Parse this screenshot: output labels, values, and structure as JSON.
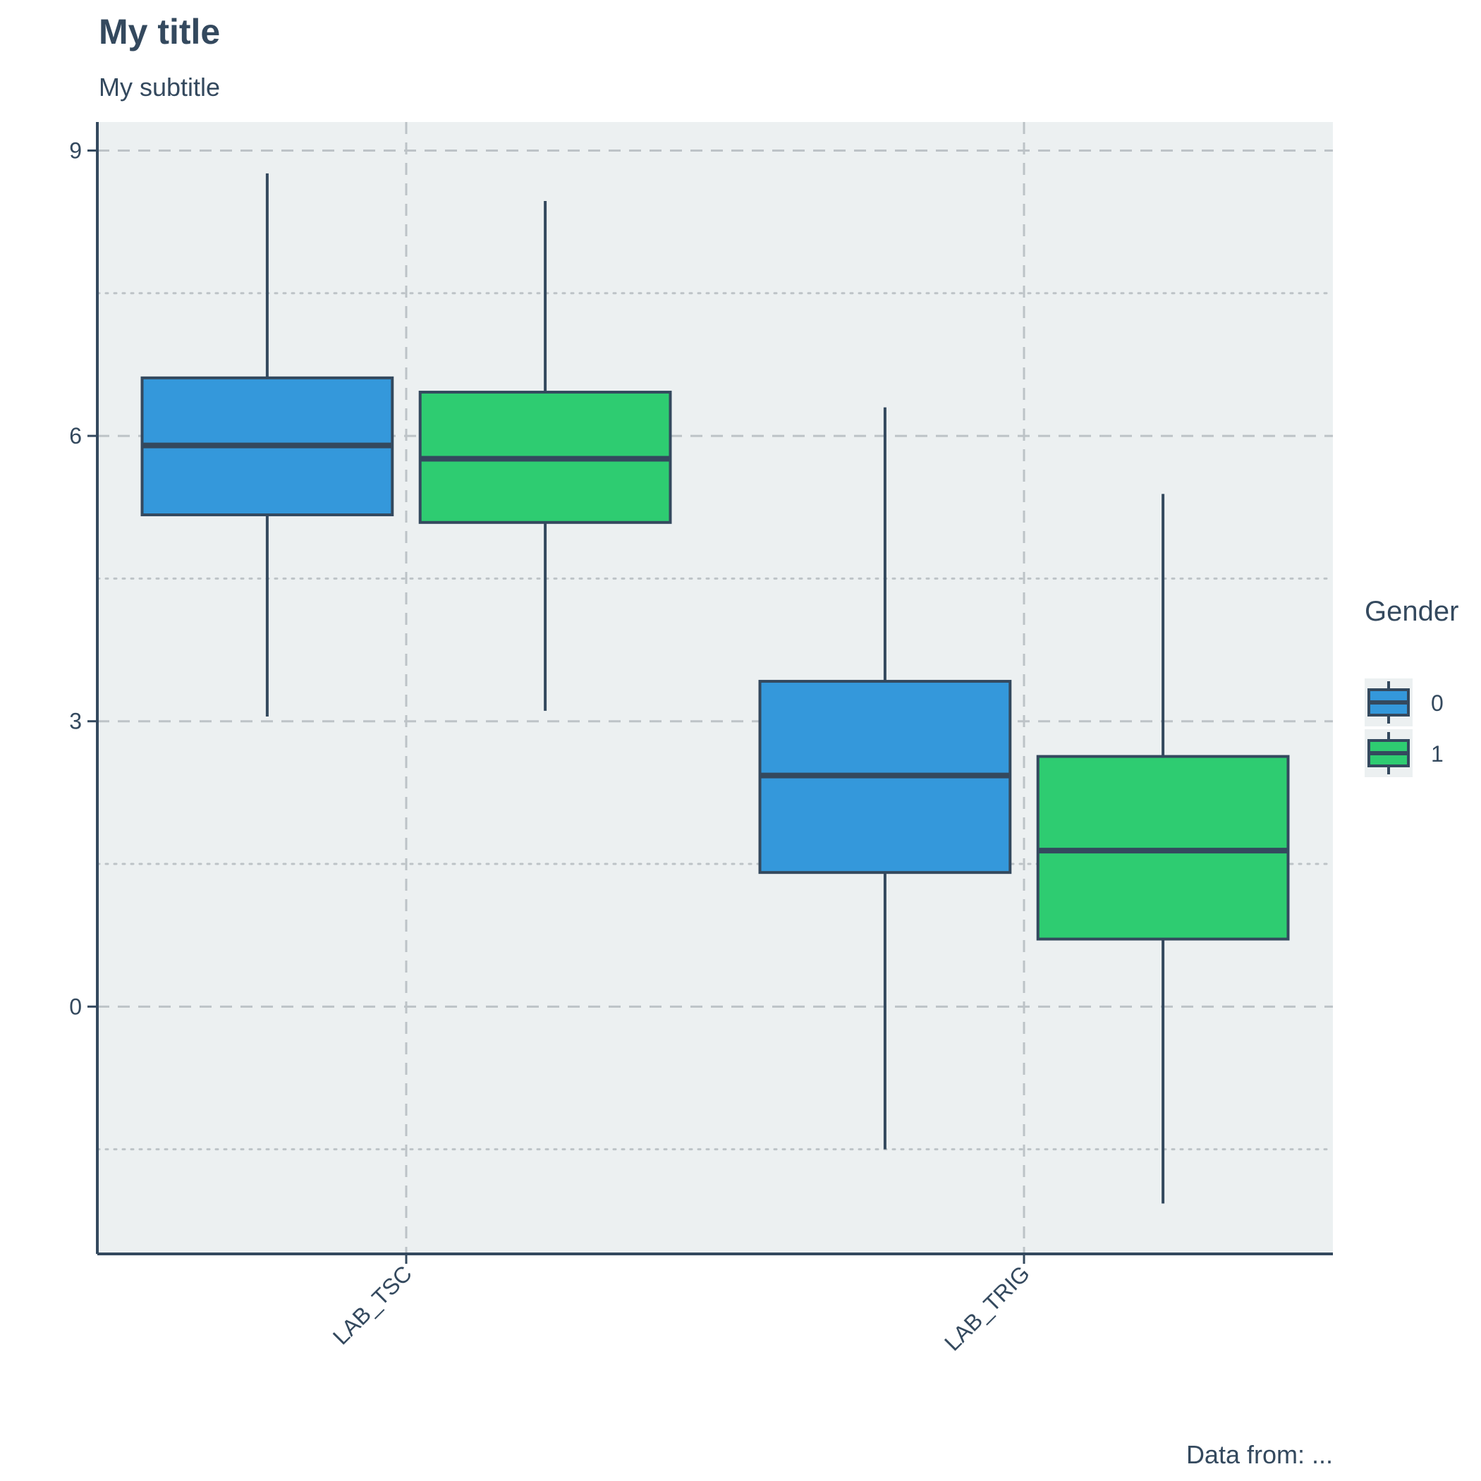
{
  "chart_data": {
    "type": "boxplot",
    "title": "My title",
    "subtitle": "My subtitle",
    "caption": "Data from: ...",
    "xlabel": "",
    "ylabel": "",
    "categories": [
      "LAB_TSC",
      "LAB_TRIG"
    ],
    "ylim": [
      -2.6,
      9.3
    ],
    "yticks": [
      0,
      3,
      6,
      9
    ],
    "y_tick_labels": [
      "0",
      "3",
      "6",
      "9"
    ],
    "grid": true,
    "legend": {
      "title": "Gender",
      "position": "right",
      "entries": [
        {
          "label": "0",
          "color": "#3498db"
        },
        {
          "label": "1",
          "color": "#2ecc71"
        }
      ]
    },
    "series": [
      {
        "group": "0",
        "color": "#3498db",
        "boxes": [
          {
            "category": "LAB_TSC",
            "whisker_low": 3.05,
            "q1": 5.17,
            "median": 5.9,
            "q3": 6.61,
            "whisker_high": 8.76
          },
          {
            "category": "LAB_TRIG",
            "whisker_low": -1.5,
            "q1": 1.41,
            "median": 2.43,
            "q3": 3.42,
            "whisker_high": 6.3
          }
        ]
      },
      {
        "group": "1",
        "color": "#2ecc71",
        "boxes": [
          {
            "category": "LAB_TSC",
            "whisker_low": 3.11,
            "q1": 5.09,
            "median": 5.76,
            "q3": 6.46,
            "whisker_high": 8.47
          },
          {
            "category": "LAB_TRIG",
            "whisker_low": -2.07,
            "q1": 0.71,
            "median": 1.64,
            "q3": 2.63,
            "whisker_high": 5.39
          }
        ]
      }
    ],
    "colors": {
      "panel_background": "#ecf0f1",
      "line": "#34495e",
      "grid": "#bdc3c7"
    }
  }
}
